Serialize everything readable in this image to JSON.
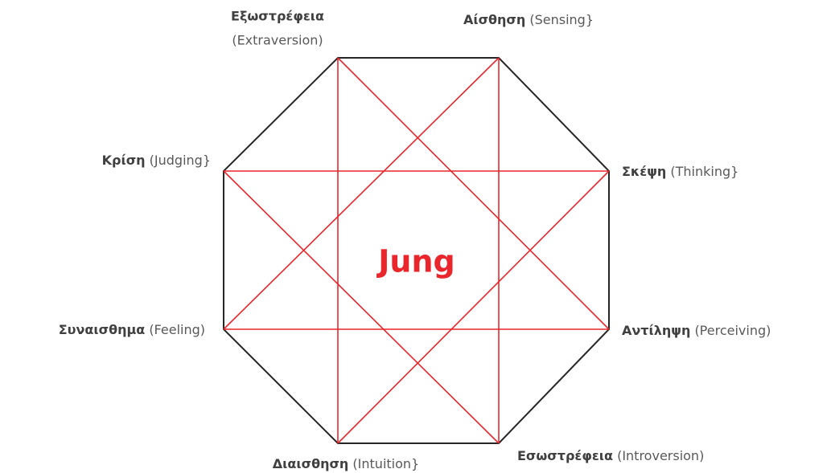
{
  "title": "Jung",
  "nodes": [
    {
      "label": "Εξωστρέφεια",
      "sublabel": "(Extraversion)"
    },
    {
      "label": "Αίσθηση",
      "sublabel": "(Sensing}"
    },
    {
      "label": "Σκέψη",
      "sublabel": "(Thinking}"
    },
    {
      "label": "Αντίληψη",
      "sublabel": "(Perceiving)"
    },
    {
      "label": "Εσωστρέφεια",
      "sublabel": "(Introversion)"
    },
    {
      "label": "Διαισθηση",
      "sublabel": "(Intuition}"
    },
    {
      "label": "Συναισθημα",
      "sublabel": "(Feeling)"
    },
    {
      "label": "Κρίση",
      "sublabel": "(Judging}"
    }
  ]
}
